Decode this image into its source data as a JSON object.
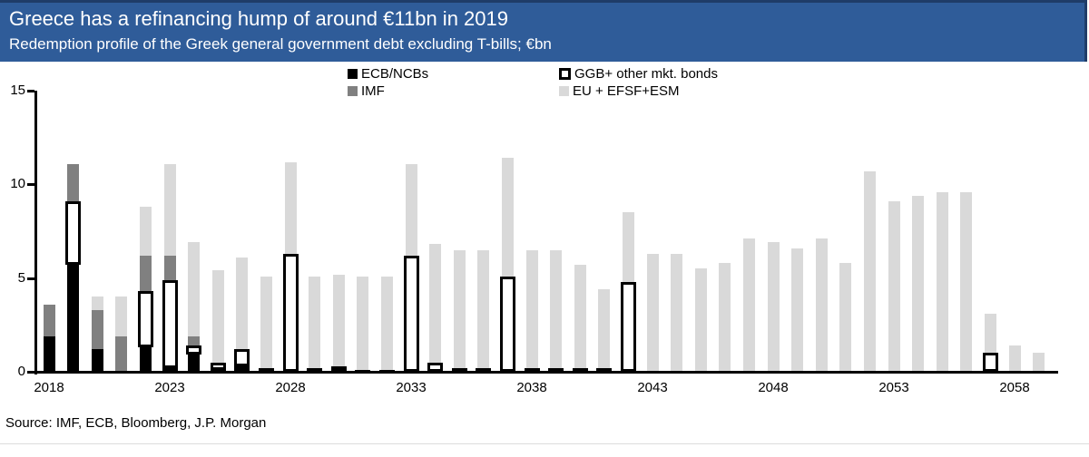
{
  "header": {
    "title": "Greece has a refinancing hump of around €11bn in 2019",
    "subtitle": "Redemption profile of the Greek general government debt excluding T-bills; €bn"
  },
  "source": "Source: IMF, ECB, Bloomberg, J.P. Morgan",
  "colors": {
    "header_bg": "#2F5C99",
    "header_border": "#1F3C68",
    "ecb": "#000000",
    "ggb_fill": "#FFFFFF",
    "ggb_border": "#000000",
    "imf": "#808080",
    "eu": "#D9D9D9",
    "axis": "#000000"
  },
  "chart_data": {
    "type": "bar",
    "stacked": true,
    "title": "Greece has a refinancing hump of around €11bn in 2019",
    "subtitle": "Redemption profile of the Greek general government debt excluding T-bills; €bn",
    "ylabel": "€bn",
    "ylim": [
      0,
      15
    ],
    "yticks": [
      0,
      5,
      10,
      15
    ],
    "xtick_years": [
      2018,
      2023,
      2028,
      2033,
      2038,
      2043,
      2048,
      2053,
      2058
    ],
    "grid": false,
    "legend_position": "top",
    "legend": [
      {
        "label": "ECB/NCBs",
        "swatch": "ecb"
      },
      {
        "label": "IMF",
        "swatch": "imf"
      },
      {
        "label": "GGB+ other mkt. bonds",
        "swatch": "ggb"
      },
      {
        "label": "EU + EFSF+ESM",
        "swatch": "eu"
      }
    ],
    "categories": [
      2018,
      2019,
      2020,
      2021,
      2022,
      2023,
      2024,
      2025,
      2026,
      2027,
      2028,
      2029,
      2030,
      2031,
      2032,
      2033,
      2034,
      2035,
      2036,
      2037,
      2038,
      2039,
      2040,
      2041,
      2042,
      2043,
      2044,
      2045,
      2046,
      2047,
      2048,
      2049,
      2050,
      2051,
      2052,
      2053,
      2054,
      2055,
      2056,
      2057,
      2058,
      2059
    ],
    "series": [
      {
        "name": "ECB/NCBs",
        "key": "ecb",
        "values": [
          1.9,
          5.7,
          1.2,
          0,
          1.3,
          0.2,
          0.9,
          0.1,
          0.3,
          0.2,
          0,
          0.2,
          0.3,
          0.1,
          0.1,
          0,
          0,
          0.2,
          0.2,
          0,
          0.2,
          0.2,
          0.2,
          0.2,
          0,
          0,
          0,
          0,
          0,
          0,
          0,
          0,
          0,
          0,
          0,
          0,
          0,
          0,
          0,
          0,
          0,
          0
        ]
      },
      {
        "name": "GGB+ other mkt. bonds",
        "key": "ggb",
        "values": [
          0,
          3.4,
          0,
          0,
          3.0,
          4.7,
          0.5,
          0.4,
          0.9,
          0,
          6.3,
          0,
          0,
          0,
          0,
          6.2,
          0.5,
          0,
          0,
          5.1,
          0,
          0,
          0,
          0,
          4.8,
          0,
          0,
          0,
          0,
          0,
          0,
          0,
          0,
          0,
          0,
          0,
          0,
          0,
          0,
          1.0,
          0,
          0
        ]
      },
      {
        "name": "IMF",
        "key": "imf",
        "values": [
          1.7,
          2.0,
          2.1,
          1.9,
          1.9,
          1.3,
          0.5,
          0,
          0,
          0,
          0,
          0,
          0,
          0,
          0,
          0,
          0,
          0,
          0,
          0,
          0,
          0,
          0,
          0,
          0,
          0,
          0,
          0,
          0,
          0,
          0,
          0,
          0,
          0,
          0,
          0,
          0,
          0,
          0,
          0,
          0,
          0
        ]
      },
      {
        "name": "EU + EFSF+ESM",
        "key": "eu",
        "values": [
          0,
          0,
          0.7,
          2.1,
          2.6,
          4.9,
          5.0,
          4.9,
          4.9,
          4.9,
          4.9,
          4.9,
          4.9,
          5.0,
          5.0,
          4.9,
          6.3,
          6.3,
          6.3,
          6.3,
          6.3,
          6.3,
          5.5,
          4.2,
          3.7,
          6.3,
          6.3,
          5.5,
          5.8,
          7.1,
          6.9,
          6.6,
          7.1,
          5.8,
          10.7,
          9.1,
          9.4,
          9.6,
          9.6,
          2.1,
          1.4,
          1.0
        ]
      }
    ]
  }
}
